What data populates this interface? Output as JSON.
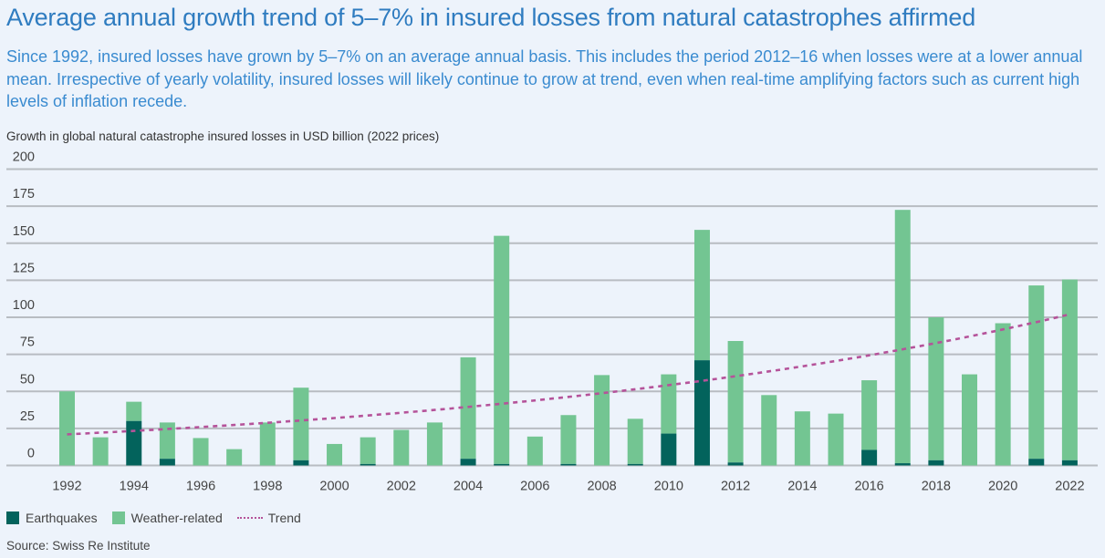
{
  "header": {
    "title": "Average annual growth trend of 5–7% in insured losses from natural catastrophes affirmed",
    "subtitle": "Since 1992, insured losses have grown by 5–7% on an average annual basis. This includes the period 2012–16 when losses were at a lower annual mean. Irrespective of yearly volatility, insured losses will likely continue to grow at trend, even when real-time amplifying factors such as current high levels of inflation recede.",
    "unit_label": "Growth in global natural catastrophe insured losses in USD billion (2022 prices)"
  },
  "legend": {
    "earthquakes": "Earthquakes",
    "weather": "Weather-related",
    "trend": "Trend"
  },
  "source": "Source: Swiss Re Institute",
  "colors": {
    "earthquakes": "#03635c",
    "weather": "#73c592",
    "trend": "#b5539a",
    "grid": "#b8bcc2",
    "title": "#2f7cc0"
  },
  "chart_data": {
    "type": "bar",
    "stacked": true,
    "title": "Average annual growth trend of 5–7% in insured losses from natural catastrophes affirmed",
    "ylabel": "Growth in global natural catastrophe insured losses in USD billion (2022 prices)",
    "xlabel": "",
    "ylim": [
      0,
      200
    ],
    "yticks": [
      0,
      25,
      50,
      75,
      100,
      125,
      150,
      175,
      200
    ],
    "xtick_labels": [
      "1992",
      "1994",
      "1996",
      "1998",
      "2000",
      "2002",
      "2004",
      "2006",
      "2008",
      "2010",
      "2012",
      "2014",
      "2016",
      "2018",
      "2020",
      "2022"
    ],
    "grid": true,
    "legend_position": "bottom-left",
    "categories": [
      1992,
      1993,
      1994,
      1995,
      1996,
      1997,
      1998,
      1999,
      2000,
      2001,
      2002,
      2003,
      2004,
      2005,
      2006,
      2007,
      2008,
      2009,
      2010,
      2011,
      2012,
      2013,
      2014,
      2015,
      2016,
      2017,
      2018,
      2019,
      2020,
      2021,
      2022
    ],
    "series": [
      {
        "name": "Earthquakes",
        "values": [
          0,
          0,
          30,
          4.5,
          0,
          0,
          0,
          3.5,
          0,
          1,
          0,
          0,
          4.5,
          1,
          0,
          1,
          0,
          1,
          21.5,
          71,
          2,
          0,
          0,
          0,
          10.5,
          1.5,
          3.5,
          0,
          0,
          4.5,
          3.5
        ]
      },
      {
        "name": "Weather-related",
        "values": [
          50,
          19,
          13,
          24.5,
          18.5,
          11,
          29,
          49,
          14.5,
          18,
          24,
          29,
          68.5,
          154,
          19.5,
          33,
          61,
          30.5,
          40,
          88,
          82,
          47.5,
          36.5,
          35,
          47,
          171,
          96.5,
          61.5,
          96,
          117,
          122
        ]
      },
      {
        "name": "Trend",
        "type": "line",
        "style": "dotted",
        "x": [
          1992,
          2022
        ],
        "values_start_end": [
          21,
          102
        ],
        "annual_growth_rate_pct": 5.4
      }
    ]
  }
}
